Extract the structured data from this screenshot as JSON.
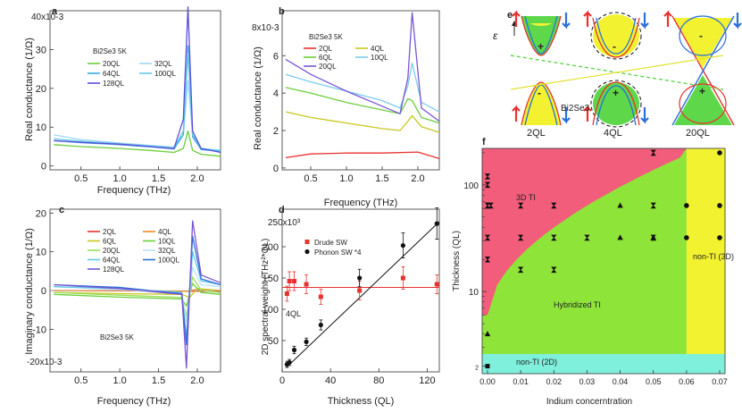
{
  "chart_data": [
    {
      "id": "a",
      "type": "line",
      "panel_label": "a",
      "xlabel": "Frequency (THz)",
      "ylabel": "Real conductance (1/Ω)",
      "sample_label": "Bi2Se3 5K",
      "y_exponent_label": "40x10-3",
      "xlim": [
        0.1,
        2.3
      ],
      "ylim": [
        -1,
        40
      ],
      "xticks": [
        "0.5",
        "1.0",
        "1.5",
        "2.0"
      ],
      "yticks": [
        "0",
        "10",
        "20",
        "30"
      ],
      "series": [
        {
          "name": "20QL",
          "color": "#6ccf3c",
          "x": [
            0.15,
            0.5,
            1.0,
            1.4,
            1.7,
            1.82,
            1.88,
            1.94,
            2.05,
            2.3
          ],
          "y": [
            5.5,
            5.0,
            4.5,
            4.0,
            3.5,
            4.5,
            9.0,
            4.0,
            3.0,
            2.5
          ]
        },
        {
          "name": "32QL",
          "color": "#9fd8f4",
          "x": [
            0.15,
            0.5,
            1.0,
            1.4,
            1.7,
            1.82,
            1.88,
            1.94,
            2.05,
            2.3
          ],
          "y": [
            8.0,
            6.8,
            5.9,
            5.3,
            4.9,
            8.0,
            22.0,
            8.0,
            4.5,
            4.0
          ]
        },
        {
          "name": "64QL",
          "color": "#3aa8e4",
          "x": [
            0.15,
            0.5,
            1.0,
            1.4,
            1.7,
            1.82,
            1.88,
            1.94,
            2.05,
            2.3
          ],
          "y": [
            6.5,
            6.0,
            5.5,
            4.9,
            4.4,
            8.0,
            31.0,
            7.5,
            4.2,
            3.8
          ]
        },
        {
          "name": "100QL",
          "color": "#63c9e6",
          "x": [
            0.15,
            0.5,
            1.0,
            1.4,
            1.7,
            1.82,
            1.88,
            1.94,
            2.05,
            2.3
          ],
          "y": [
            7.0,
            6.4,
            5.7,
            5.1,
            4.6,
            9.0,
            29.0,
            8.0,
            4.5,
            4.0
          ]
        },
        {
          "name": "128QL",
          "color": "#5a4fd8",
          "x": [
            0.15,
            0.5,
            1.0,
            1.4,
            1.7,
            1.82,
            1.88,
            1.94,
            2.05,
            2.3
          ],
          "y": [
            6.5,
            6.1,
            5.6,
            5.0,
            4.5,
            12.0,
            41.0,
            9.0,
            4.5,
            3.5
          ]
        }
      ]
    },
    {
      "id": "b",
      "type": "line",
      "panel_label": "b",
      "xlabel": "Frequency (THz)",
      "ylabel": "Real conductance (1/Ω)",
      "sample_label": "Bi2Se3 5K",
      "y_exponent_label": "8x10-3",
      "xlim": [
        0.1,
        2.3
      ],
      "ylim": [
        -0.1,
        8.4
      ],
      "xticks": [
        "0.5",
        "1.0",
        "1.5",
        "2.0"
      ],
      "yticks": [
        "0",
        "2",
        "4",
        "6"
      ],
      "series": [
        {
          "name": "2QL",
          "color": "#e8322f",
          "x": [
            0.15,
            0.5,
            1.0,
            1.5,
            2.0,
            2.3
          ],
          "y": [
            0.55,
            0.75,
            0.8,
            0.8,
            0.85,
            0.5
          ]
        },
        {
          "name": "4QL",
          "color": "#c8c820",
          "x": [
            0.15,
            0.5,
            1.0,
            1.5,
            1.75,
            1.86,
            1.92,
            2.05,
            2.3
          ],
          "y": [
            3.0,
            2.7,
            2.4,
            2.1,
            2.0,
            2.5,
            2.8,
            2.2,
            1.9
          ]
        },
        {
          "name": "6QL",
          "color": "#6ccf3c",
          "x": [
            0.15,
            0.5,
            1.0,
            1.5,
            1.75,
            1.86,
            1.92,
            2.05,
            2.3
          ],
          "y": [
            4.3,
            4.0,
            3.5,
            3.1,
            2.9,
            3.7,
            3.6,
            2.7,
            2.4
          ]
        },
        {
          "name": "10QL",
          "color": "#7ccbf0",
          "x": [
            0.15,
            0.5,
            1.0,
            1.5,
            1.75,
            1.86,
            1.92,
            2.05,
            2.3
          ],
          "y": [
            5.0,
            4.6,
            4.1,
            3.6,
            3.2,
            4.4,
            5.6,
            3.5,
            3.0
          ]
        },
        {
          "name": "20QL",
          "color": "#7a55d6",
          "x": [
            0.15,
            0.5,
            1.0,
            1.5,
            1.75,
            1.86,
            1.92,
            2.05,
            2.3
          ],
          "y": [
            5.8,
            5.0,
            4.1,
            3.3,
            2.9,
            4.8,
            8.3,
            3.2,
            2.5
          ]
        }
      ]
    },
    {
      "id": "c",
      "type": "line",
      "panel_label": "c",
      "xlabel": "Frequency (THz)",
      "ylabel": "Imaginary conductance (1/Ω)",
      "sample_label": "Bi2Se3 5K",
      "y_exponent_label": "-20x10-3",
      "xlim": [
        0.1,
        2.3
      ],
      "ylim": [
        -21,
        21
      ],
      "xticks": [
        "0.5",
        "1.0",
        "1.5",
        "2.0"
      ],
      "yticks": [
        "-10",
        "0",
        "10",
        "20"
      ],
      "series": [
        {
          "name": "2QL",
          "color": "#e8322f",
          "x": [
            0.15,
            1.0,
            2.3
          ],
          "y": [
            0,
            -0.1,
            -0.2
          ]
        },
        {
          "name": "4QL",
          "color": "#f08a24",
          "x": [
            0.15,
            1.0,
            1.85,
            2.0,
            2.3
          ],
          "y": [
            0,
            0,
            -0.2,
            0.3,
            0
          ]
        },
        {
          "name": "6QL",
          "color": "#c8c820",
          "x": [
            0.15,
            1.0,
            1.8,
            1.9,
            2.0,
            2.3
          ],
          "y": [
            -0.5,
            -0.8,
            -1.0,
            -1.8,
            0.5,
            0
          ]
        },
        {
          "name": "10QL",
          "color": "#6ccf3c",
          "x": [
            0.15,
            1.0,
            1.8,
            1.86,
            1.94,
            2.05,
            2.3
          ],
          "y": [
            -1.0,
            -1.7,
            -2.2,
            -4.0,
            1.8,
            -0.5,
            -1.0
          ]
        },
        {
          "name": "20QL",
          "color": "#9ae05a",
          "x": [
            0.15,
            1.0,
            1.8,
            1.86,
            1.94,
            2.05,
            2.3
          ],
          "y": [
            -0.5,
            -1.2,
            -1.8,
            -6.5,
            3.5,
            0,
            -0.5
          ]
        },
        {
          "name": "32QL",
          "color": "#b8e2f6",
          "x": [
            0.15,
            1.0,
            1.8,
            1.86,
            1.94,
            2.05,
            2.3
          ],
          "y": [
            1.0,
            0.2,
            -0.8,
            -8.0,
            6.0,
            1.5,
            1.0
          ]
        },
        {
          "name": "64QL",
          "color": "#63c9e6",
          "x": [
            0.15,
            1.0,
            1.8,
            1.86,
            1.94,
            2.05,
            2.3
          ],
          "y": [
            1.0,
            0.5,
            -0.5,
            -12.0,
            10.0,
            2.5,
            1.5
          ]
        },
        {
          "name": "100QL",
          "color": "#2a6fd8",
          "x": [
            0.15,
            1.0,
            1.8,
            1.86,
            1.94,
            2.05,
            2.3
          ],
          "y": [
            1.5,
            0.8,
            -0.8,
            -14.0,
            14.0,
            3.0,
            1.5
          ]
        },
        {
          "name": "128QL",
          "color": "#7a55d6",
          "x": [
            0.15,
            1.0,
            1.8,
            1.86,
            1.94,
            2.05,
            2.3
          ],
          "y": [
            1.5,
            0.5,
            -1.0,
            -20.0,
            18.0,
            4.0,
            2.0
          ]
        }
      ]
    },
    {
      "id": "d",
      "type": "scatter",
      "panel_label": "d",
      "xlabel": "Thickness (QL)",
      "ylabel": "2D spectral weight (THz²*QL)",
      "y_exponent_label": "250x10³",
      "annotation": "4QL",
      "xlim": [
        0,
        130
      ],
      "ylim": [
        0,
        260
      ],
      "xticks": [
        "0",
        "40",
        "80",
        "120"
      ],
      "yticks": [
        "50",
        "100",
        "150",
        "200"
      ],
      "series": [
        {
          "name": "Drude SW",
          "color": "#e8322f",
          "marker": "square",
          "x": [
            4,
            6,
            10,
            20,
            32,
            64,
            100,
            128
          ],
          "y": [
            125,
            145,
            145,
            140,
            120,
            130,
            150,
            140
          ],
          "err": [
            12,
            15,
            15,
            15,
            12,
            15,
            18,
            15
          ]
        },
        {
          "name": "Phonon SW *4",
          "color": "#111111",
          "marker": "circle",
          "x": [
            4,
            6,
            10,
            20,
            32,
            64,
            100,
            128
          ],
          "y": [
            12,
            15,
            35,
            48,
            75,
            150,
            202,
            237
          ],
          "err": [
            5,
            5,
            6,
            6,
            8,
            14,
            20,
            25
          ]
        }
      ],
      "fits": [
        {
          "color": "#e8322f",
          "x": [
            0,
            130
          ],
          "y": [
            135,
            135
          ]
        },
        {
          "color": "#111111",
          "x": [
            4,
            130
          ],
          "y": [
            8,
            240
          ]
        }
      ]
    },
    {
      "id": "f",
      "type": "scatter",
      "panel_label": "f",
      "xlabel": "Indium concerntration",
      "ylabel": "Thickness (QL)",
      "yscale": "log",
      "xlim": [
        0,
        0.07
      ],
      "ylim": [
        1.7,
        220
      ],
      "xticks": [
        "0.00",
        "0.01",
        "0.02",
        "0.03",
        "0.04",
        "0.05",
        "0.06",
        "0.07"
      ],
      "yticks": [
        "2",
        "10",
        "100"
      ],
      "regions": [
        {
          "name": "3D TI",
          "color": "#f25d7b"
        },
        {
          "name": "Hybridized TI",
          "color": "#8fe43a"
        },
        {
          "name": "non-TI (3D)",
          "color": "#f2f230"
        },
        {
          "name": "non-TI (2D)",
          "color": "#7ff0dc"
        }
      ],
      "points": [
        {
          "marker": "hourglass",
          "x": [
            0.0,
            0.0,
            0.0,
            0.0,
            0.0,
            0.001,
            0.0,
            0.01,
            0.01,
            0.01,
            0.02,
            0.02,
            0.02,
            0.03,
            0.05,
            0.05,
            0.05
          ],
          "y": [
            120,
            100,
            64,
            64,
            32,
            64,
            20,
            64,
            32,
            16,
            64,
            32,
            16,
            32,
            200,
            64,
            32
          ]
        },
        {
          "marker": "triangle",
          "x": [
            0.0,
            0.04,
            0.04,
            0.05
          ],
          "y": [
            4,
            64,
            32,
            32
          ]
        },
        {
          "marker": "circle",
          "x": [
            0.06,
            0.06,
            0.07,
            0.07,
            0.07
          ],
          "y": [
            64,
            32,
            200,
            64,
            32
          ]
        },
        {
          "marker": "square",
          "x": [
            0.0
          ],
          "y": [
            2
          ]
        }
      ]
    }
  ],
  "schematic_e": {
    "panel_label": "e",
    "energy_label": "ε",
    "material_label": "Bi2Se3",
    "columns": [
      "2QL",
      "4QL",
      "20QL"
    ],
    "signs": [
      "-",
      "+",
      "-",
      "+",
      "-",
      "+"
    ],
    "colors": {
      "red": "#e8322f",
      "blue": "#2a6fd8",
      "green": "#5ed84a",
      "yellow": "#f2f230"
    }
  }
}
